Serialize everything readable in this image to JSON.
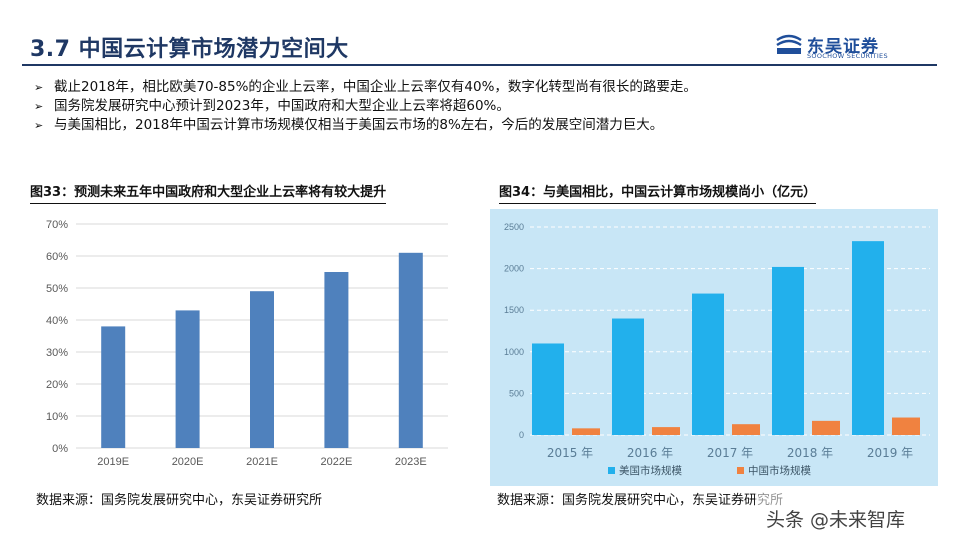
{
  "page": {
    "title": "3.7 中国云计算市场潜力空间大",
    "logo": {
      "cn": "东吴证券",
      "en": "SOOCHOW SECURITIES"
    },
    "bullets": [
      "截止2018年，相比欧美70-85%的企业上云率，中国企业上云率仅有40%，数字化转型尚有很长的路要走。",
      "国务院发展研究中心预计到2023年，中国政府和大型企业上云率将超60%。",
      "与美国相比，2018年中国云计算市场规模仅相当于美国云市场的8%左右，今后的发展空间潜力巨大。"
    ],
    "watermark": "头条 @未来智库"
  },
  "fig33": {
    "title": "图33：预测未来五年中国政府和大型企业上云率将有较大提升",
    "source": "数据来源：国务院发展研究中心，东吴证券研究所"
  },
  "fig34": {
    "title": "图34：与美国相比，中国云计算市场规模尚小（亿元）",
    "source": "数据来源：国务院发展研究中心，东吴证券研究所"
  },
  "chart_data": [
    {
      "type": "bar",
      "categories": [
        "2019E",
        "2020E",
        "2021E",
        "2022E",
        "2023E"
      ],
      "values": [
        38,
        43,
        49,
        55,
        61
      ],
      "ylim": [
        0,
        70
      ],
      "yticks": [
        "0%",
        "10%",
        "20%",
        "30%",
        "40%",
        "50%",
        "60%",
        "70%"
      ],
      "grid": true,
      "colors": {
        "bar": "#4f81bd",
        "grid": "#d9d9d9",
        "axis": "#595959"
      }
    },
    {
      "type": "bar",
      "categories": [
        "2015 年",
        "2016 年",
        "2017 年",
        "2018 年",
        "2019 年"
      ],
      "series": [
        {
          "name": "美国市场规模",
          "values": [
            1100,
            1400,
            1700,
            2020,
            2330
          ],
          "color": "#22b0ec"
        },
        {
          "name": "中国市场规模",
          "values": [
            80,
            95,
            130,
            170,
            210
          ],
          "color": "#f08240"
        }
      ],
      "ylim": [
        0,
        2500
      ],
      "yticks": [
        "0",
        "500",
        "1000",
        "1500",
        "2000",
        "2500"
      ],
      "grid": true,
      "legend": "bottom",
      "colors": {
        "background": "#c8e6f6",
        "grid": "#ffffff",
        "axis": "#5a7d96"
      }
    }
  ]
}
